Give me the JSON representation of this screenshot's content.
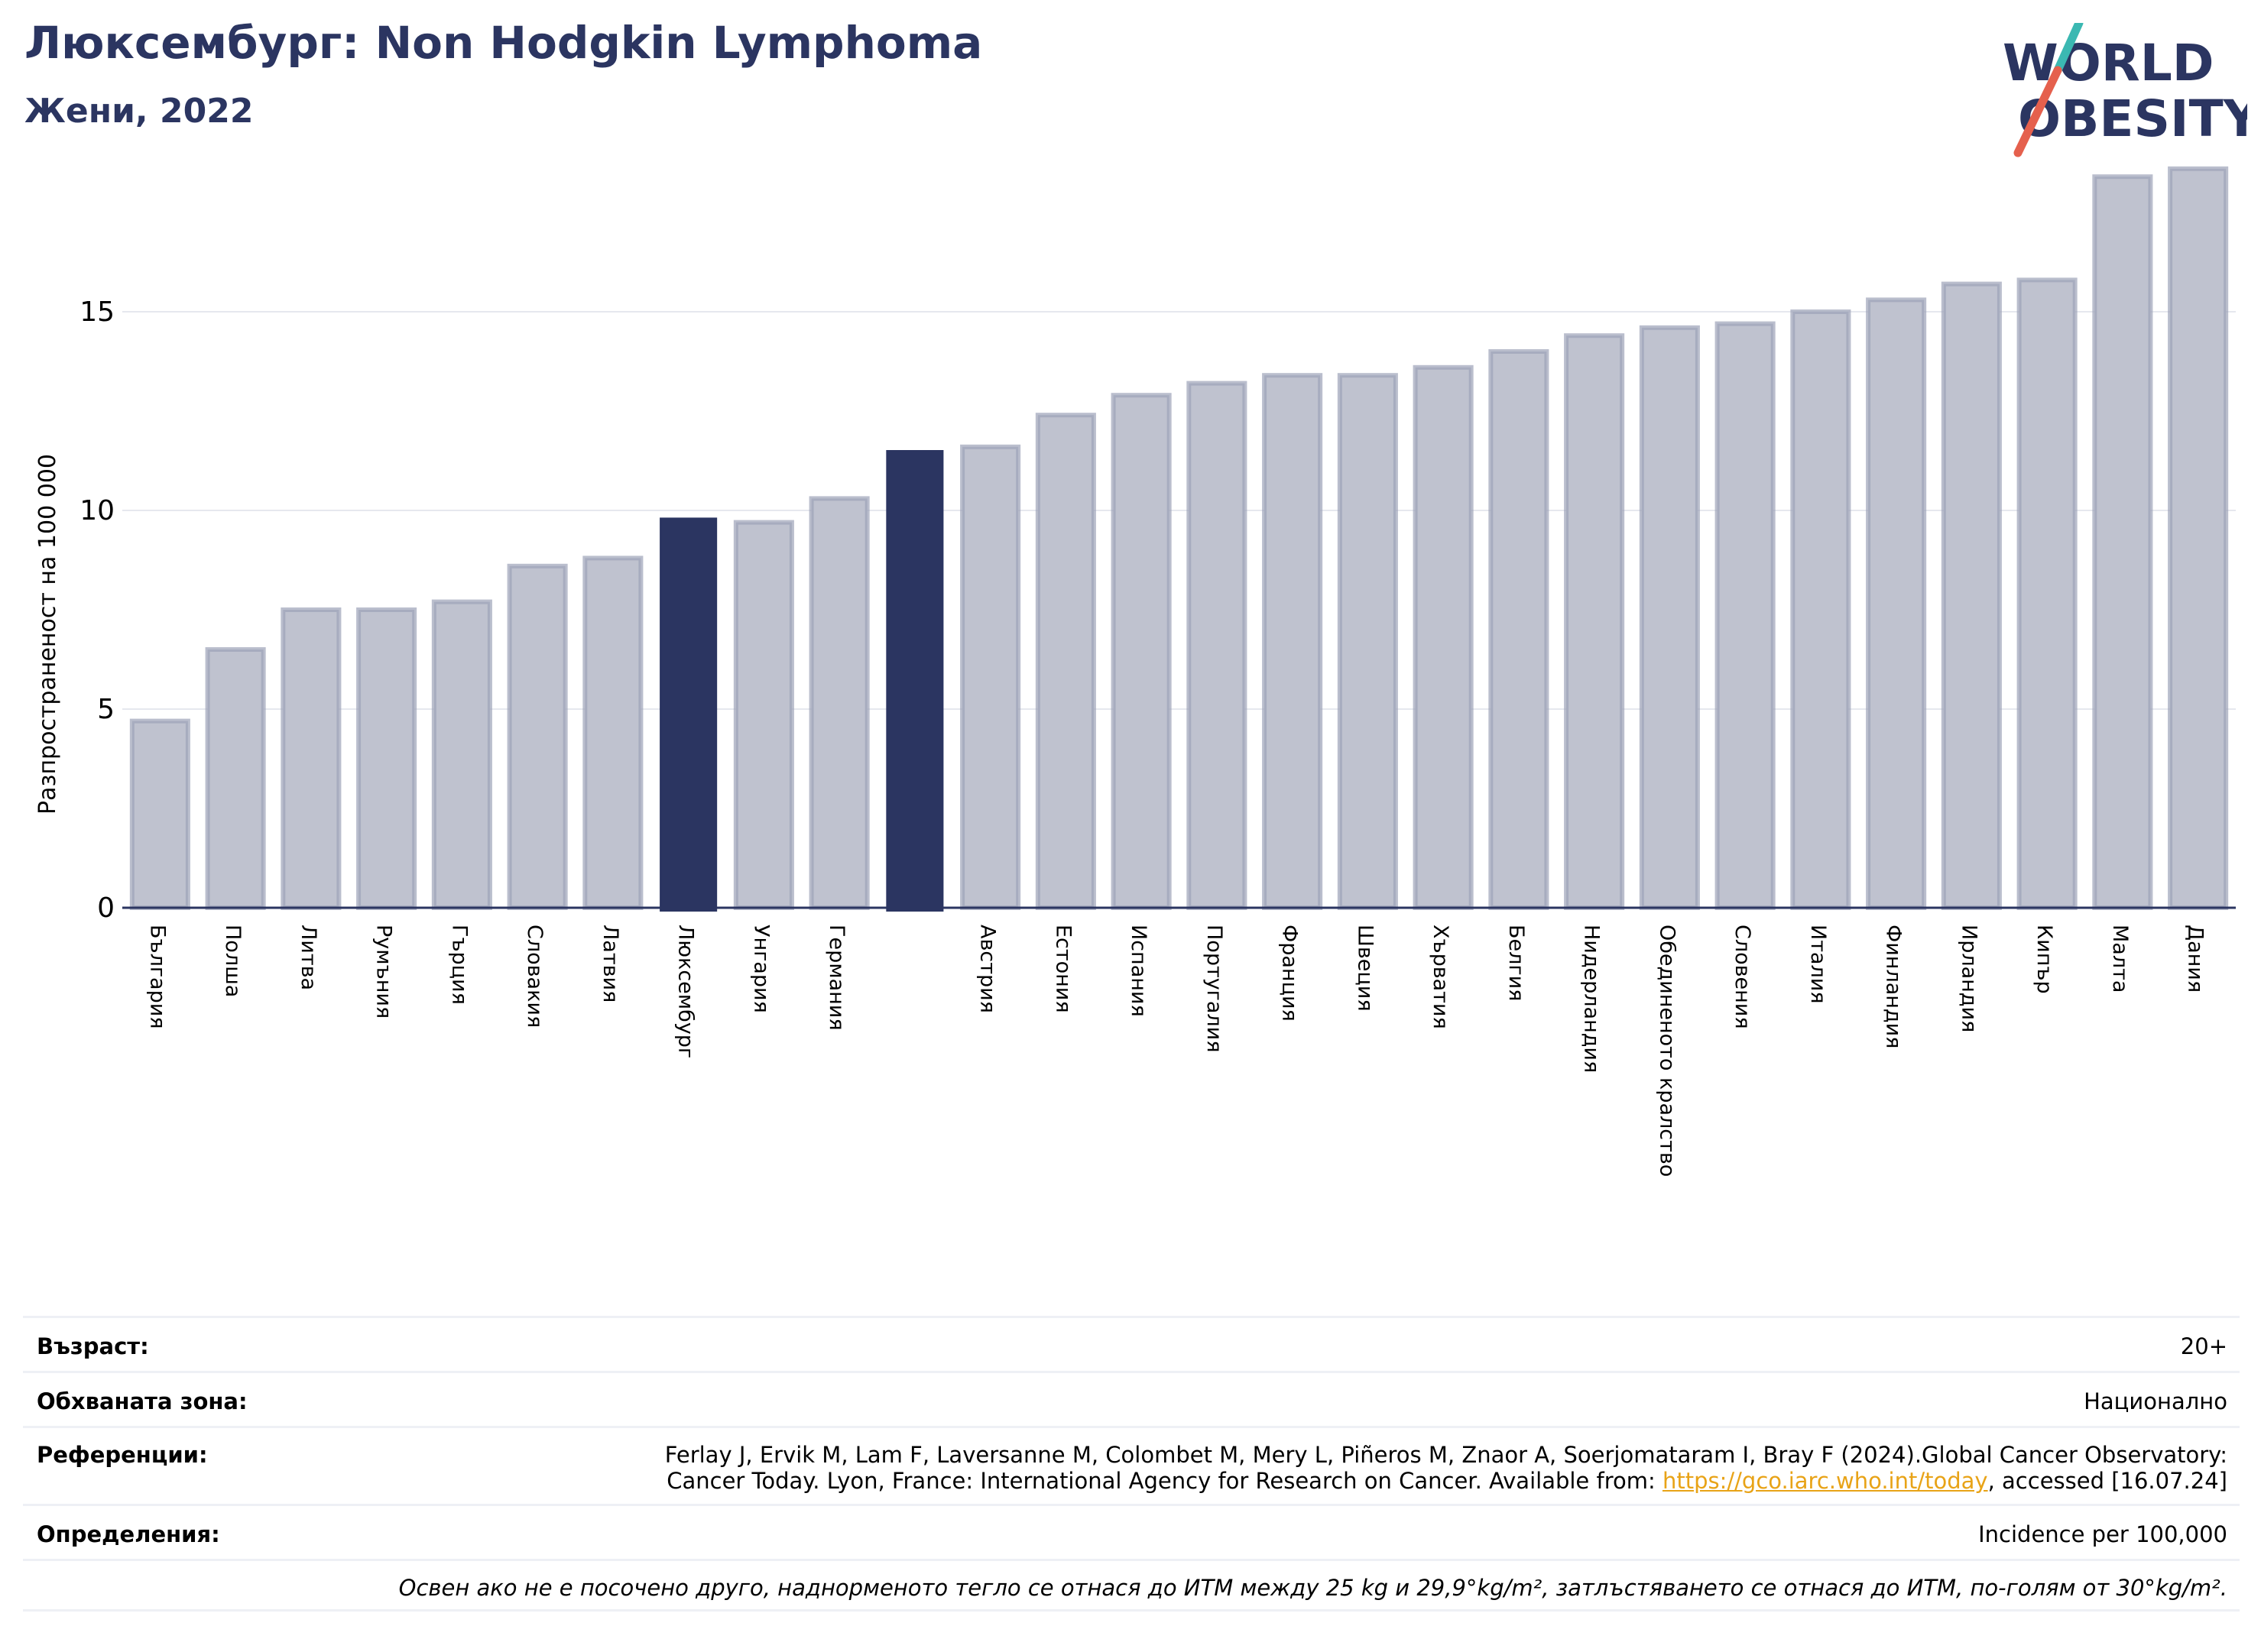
{
  "header": {
    "title": "Люксембург: Non Hodgkin Lymphoma",
    "subtitle": "Жени, 2022"
  },
  "logo": {
    "line1": "WORLD",
    "line2": "OBESITY",
    "color_text": "#2b3561",
    "color_teal": "#3bb8b2",
    "color_red": "#e5604d"
  },
  "chart_data": {
    "type": "bar",
    "ylabel": "Разпространеност  на 100 000",
    "ylim": [
      0,
      19
    ],
    "yticks": [
      0,
      5,
      10,
      15
    ],
    "grid": true,
    "categories": [
      "България",
      "Полша",
      "Литва",
      "Румъния",
      "Гърция",
      "Словакия",
      "Латвия",
      "Люксембург",
      "Унгария",
      "Германия",
      "",
      "Австрия",
      "Естония",
      "Испания",
      "Португалия",
      "Франция",
      "Швеция",
      "Хърватия",
      "Белгия",
      "Нидерландия",
      "Обединеното кралство",
      "Словения",
      "Италия",
      "Финландия",
      "Ирландия",
      "Кипър",
      "Малта",
      "Дания"
    ],
    "values": [
      4.7,
      6.5,
      7.5,
      7.5,
      7.7,
      8.6,
      8.8,
      9.8,
      9.7,
      10.3,
      11.5,
      11.6,
      12.4,
      12.9,
      13.2,
      13.4,
      13.4,
      13.6,
      14.0,
      14.4,
      14.6,
      14.7,
      15.0,
      15.3,
      15.7,
      15.8,
      18.4,
      18.6
    ],
    "highlighted": [
      7,
      10
    ],
    "colors": {
      "bar": "#bfc2cf",
      "bar_edge": "#9da2b8",
      "highlight": "#2b3561",
      "axis": "#2b3561",
      "grid": "#e6e8ee"
    }
  },
  "info": {
    "age_label": "Възраст:",
    "age_value": "20+",
    "area_label": "Обхваната зона:",
    "area_value": "Национално",
    "ref_label": "Референции:",
    "ref_line1": "Ferlay J, Ervik M, Lam F, Laversanne M, Colombet M, Mery L, Piñeros M, Znaor A, Soerjomataram I, Bray F (2024).Global Cancer Observatory:",
    "ref_line2_pre": "Cancer Today. Lyon, France: International Agency for Research on Cancer. Available from: ",
    "ref_link": "https://gco.iarc.who.int/today",
    "ref_line2_post": ", accessed [16.07.24]",
    "def_label": "Определения:",
    "def_value": "Incidence per 100,000",
    "note": "Освен ако не е посочено друго, наднорменото тегло се отнася до ИТМ между 25 kg и 29,9°kg/m², затлъстяването се отнася до ИТМ, по-голям от 30°kg/m²."
  }
}
